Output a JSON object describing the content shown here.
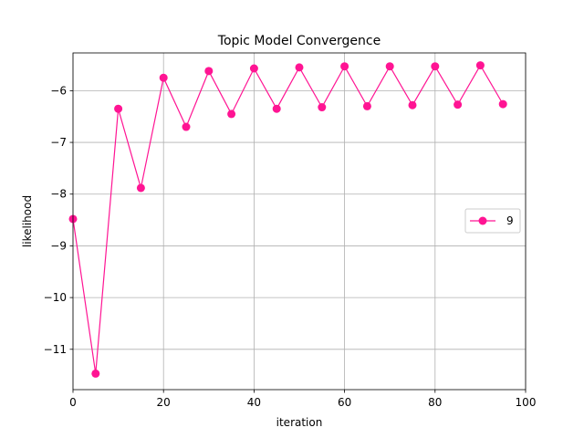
{
  "chart_data": {
    "type": "line",
    "title": "Topic Model Convergence",
    "xlabel": "iteration",
    "ylabel": "likelihood",
    "xlim": [
      0,
      100
    ],
    "ylim": [
      -11.78,
      -5.27
    ],
    "xticks": [
      0,
      20,
      40,
      60,
      80,
      100
    ],
    "yticks": [
      -11,
      -10,
      -9,
      -8,
      -7,
      -6
    ],
    "grid": true,
    "legend_position": "center-right",
    "series": [
      {
        "name": "9",
        "color": "#ff1493",
        "marker": "circle",
        "x": [
          0,
          5,
          10,
          15,
          20,
          25,
          30,
          35,
          40,
          45,
          50,
          55,
          60,
          65,
          70,
          75,
          80,
          85,
          90,
          95
        ],
        "y": [
          -8.48,
          -11.47,
          -6.35,
          -7.88,
          -5.75,
          -6.7,
          -5.62,
          -6.45,
          -5.57,
          -6.35,
          -5.55,
          -6.32,
          -5.53,
          -6.3,
          -5.53,
          -6.28,
          -5.53,
          -6.27,
          -5.51,
          -6.26
        ]
      }
    ]
  }
}
